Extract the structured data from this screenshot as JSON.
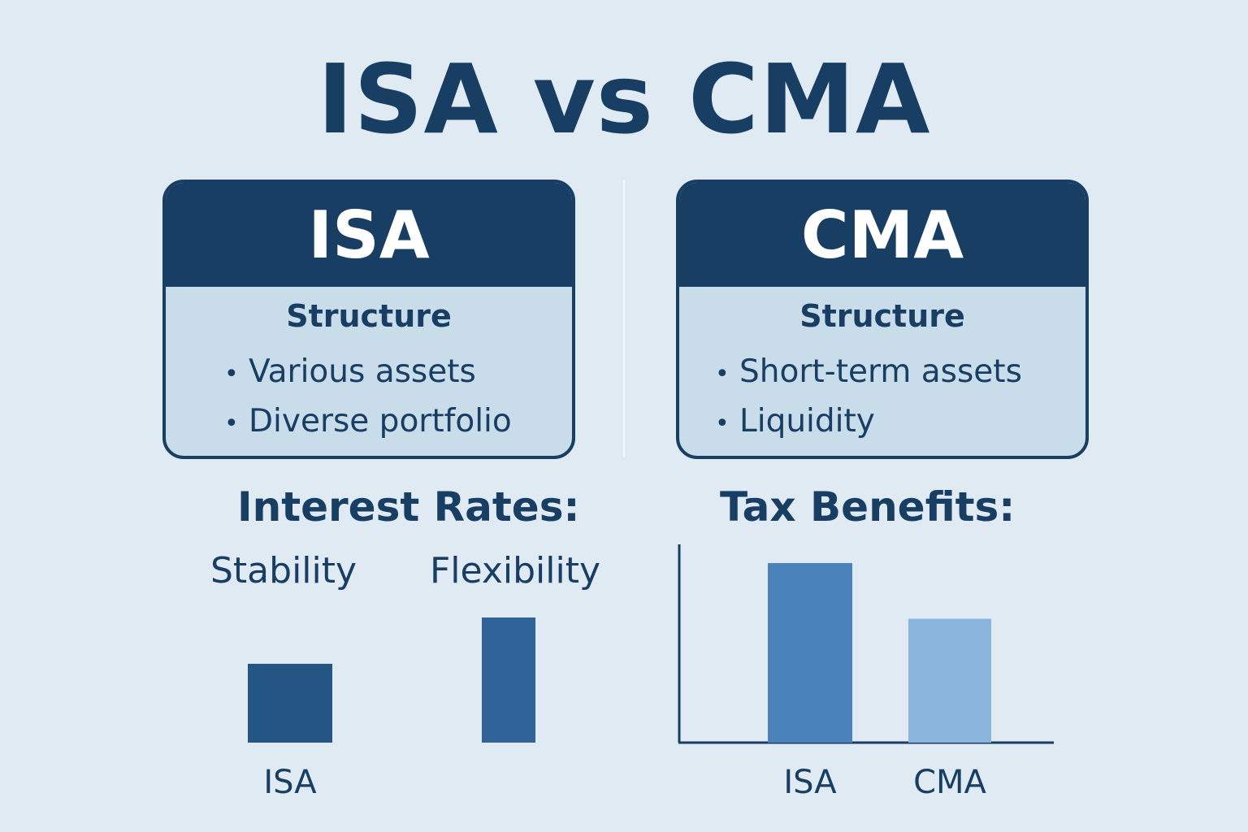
{
  "title": "ISA vs CMA",
  "cards": [
    {
      "heading": "ISA",
      "section": "Structure",
      "items": [
        "Various assets",
        "Diverse portfolio"
      ]
    },
    {
      "heading": "CMA",
      "section": "Structure",
      "items": [
        "Short-term assets",
        "Liquidity"
      ]
    }
  ],
  "colors": {
    "background": "#dfeaf3",
    "navy": "#183e63",
    "bar_dark": "#245584",
    "bar_mid": "#2f639a",
    "bar_blue": "#4a82ba",
    "bar_light": "#8cb5de"
  },
  "chart_data": [
    {
      "type": "bar",
      "title": "Interest Rates:",
      "column_labels": [
        "Stability",
        "Flexibility"
      ],
      "categories": [
        "ISA",
        ""
      ],
      "values": [
        0.63,
        1.0
      ],
      "ylim": [
        0,
        1
      ],
      "axes": false,
      "colors": [
        "#245584",
        "#2f639a"
      ]
    },
    {
      "type": "bar",
      "title": "Tax Benefits:",
      "categories": [
        "ISA",
        "CMA"
      ],
      "values": [
        1.0,
        0.69
      ],
      "ylim": [
        0,
        1.05
      ],
      "axes": true,
      "colors": [
        "#4a82ba",
        "#8cb5de"
      ]
    }
  ]
}
